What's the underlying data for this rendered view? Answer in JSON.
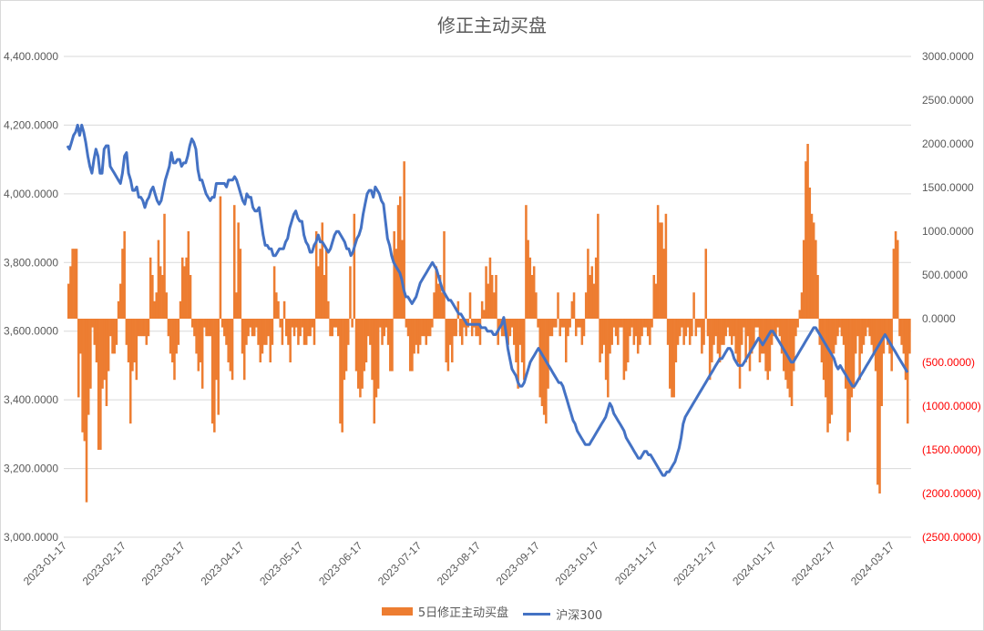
{
  "chart_data": {
    "type": "bar",
    "title": "修正主动买盘",
    "grid": true,
    "legend_position": "bottom",
    "x_tick_labels": [
      "2023-01-17",
      "2023-02-17",
      "2023-03-17",
      "2023-04-17",
      "2023-05-17",
      "2023-06-17",
      "2023-07-17",
      "2023-08-17",
      "2023-09-17",
      "2023-10-17",
      "2023-11-17",
      "2023-12-17",
      "2024-01-17",
      "2024-02-17",
      "2024-03-17"
    ],
    "left_axis": {
      "ticks": [
        "4,400.0000",
        "4,200.0000",
        "4,000.0000",
        "3,800.0000",
        "3,600.0000",
        "3,400.0000",
        "3,200.0000",
        "3,000.0000"
      ],
      "range": [
        3000,
        4400
      ]
    },
    "right_axis": {
      "ticks": [
        "3000.0000",
        "2500.0000",
        "2000.0000",
        "1500.0000",
        "1000.0000",
        "500.0000",
        "0.0000",
        "(500.0000)",
        "(1000.0000)",
        "(1500.0000)",
        "(2000.0000)",
        "(2500.0000)"
      ],
      "range": [
        -2500,
        3000
      ]
    },
    "series": [
      {
        "name": "5日修正主动买盘",
        "type": "bar",
        "axis": "right",
        "color": "#ED7D31",
        "values": [
          400,
          600,
          800,
          800,
          800,
          -900,
          -400,
          -1300,
          -1400,
          -2100,
          -1100,
          -800,
          -100,
          -300,
          -500,
          -1500,
          -1500,
          -800,
          -700,
          -1000,
          -600,
          -200,
          -400,
          -400,
          -300,
          200,
          400,
          800,
          1000,
          -300,
          -500,
          -1200,
          -600,
          -500,
          -700,
          -200,
          -200,
          -200,
          -200,
          -300,
          -200,
          700,
          500,
          200,
          300,
          900,
          600,
          500,
          1200,
          300,
          -200,
          -400,
          -500,
          -700,
          -400,
          -300,
          200,
          700,
          600,
          700,
          1000,
          500,
          -100,
          -200,
          -400,
          -600,
          -500,
          -800,
          -100,
          -200,
          -200,
          -200,
          -1200,
          -1300,
          -700,
          -1100,
          1400,
          -100,
          -200,
          -300,
          -500,
          -600,
          -700,
          1300,
          300,
          1100,
          800,
          -400,
          -700,
          -300,
          -200,
          -100,
          -200,
          -200,
          -100,
          -300,
          -500,
          -400,
          -300,
          -300,
          -200,
          -500,
          -300,
          600,
          300,
          200,
          -100,
          -300,
          200,
          -200,
          -300,
          -500,
          -100,
          -200,
          -100,
          -300,
          -200,
          -100,
          -300,
          -300,
          -200,
          -200,
          -100,
          -300,
          1000,
          600,
          800,
          1100,
          500,
          800,
          200,
          -200,
          -200,
          -100,
          -100,
          -200,
          -1200,
          -1300,
          -700,
          -600,
          -300,
          600,
          -100,
          1200,
          -600,
          -800,
          -900,
          -800,
          -600,
          -500,
          -200,
          -300,
          -700,
          -1200,
          -900,
          -800,
          -100,
          -300,
          -200,
          -100,
          -300,
          -600,
          -600,
          1000,
          800,
          1300,
          1400,
          900,
          1800,
          -100,
          -200,
          -600,
          -600,
          -400,
          -300,
          -400,
          -300,
          -200,
          -200,
          -300,
          -200,
          -200,
          -100,
          300,
          600,
          400,
          500,
          300,
          1000,
          -500,
          -600,
          -300,
          -500,
          -200,
          -200,
          200,
          -200,
          -300,
          -100,
          -200,
          -100,
          300,
          -200,
          -100,
          -200,
          -200,
          -300,
          200,
          100,
          600,
          400,
          700,
          500,
          300,
          500,
          -300,
          -100,
          -200,
          -200,
          -200,
          -300,
          -200,
          -100,
          -300,
          -500,
          -800,
          -300,
          -500,
          -700,
          1300,
          900,
          700,
          500,
          600,
          300,
          -100,
          -900,
          -1000,
          -1100,
          -1200,
          -800,
          -200,
          -200,
          -100,
          -100,
          300,
          -200,
          -100,
          -100,
          -500,
          -200,
          -100,
          200,
          300,
          -200,
          -100,
          -100,
          -300,
          -200,
          300,
          800,
          500,
          600,
          400,
          700,
          1200,
          -500,
          -400,
          -300,
          -700,
          -900,
          -400,
          -300,
          -100,
          -200,
          -300,
          -100,
          -100,
          -700,
          -600,
          -500,
          -200,
          -100,
          -300,
          -200,
          -400,
          -300,
          -200,
          -100,
          -100,
          -200,
          -300,
          -100,
          500,
          400,
          1300,
          1100,
          1100,
          800,
          1200,
          -300,
          -800,
          -900,
          -900,
          -500,
          -300,
          -200,
          -100,
          -300,
          -200,
          -100,
          -300,
          -200,
          300,
          -200,
          -100,
          -100,
          -400,
          -300,
          800,
          -200,
          -700,
          -500,
          -300,
          -200,
          -400,
          -500,
          -300,
          -300,
          -200,
          -100,
          -200,
          -300,
          -200,
          -400,
          -500,
          -800,
          -300,
          -100,
          -500,
          -200,
          -600,
          -400,
          -300,
          -100,
          -100,
          -500,
          -400,
          -400,
          -600,
          -700,
          -600,
          -300,
          -200,
          -200,
          -100,
          -200,
          -400,
          -600,
          -700,
          -800,
          -900,
          -1000,
          -600,
          -200,
          -100,
          100,
          300,
          900,
          1800,
          2000,
          1500,
          1200,
          1100,
          900,
          500,
          -300,
          -500,
          -700,
          -900,
          -1300,
          -1200,
          -1100,
          -400,
          -300,
          -200,
          -100,
          -200,
          -300,
          -800,
          -1400,
          -1300,
          -900,
          -800,
          -400,
          -200,
          -700,
          -400,
          -300,
          -200,
          -100,
          -200,
          -300,
          -400,
          -600,
          -1900,
          -2000,
          -1000,
          -400,
          -200,
          -300,
          -400,
          -600,
          800,
          1000,
          900,
          -200,
          -300,
          -400,
          -700,
          -1200,
          -400
        ],
        "values_note": "Approximate daily-like series; 385 points spanning 2023-01-17 to ~2024-04-08"
      },
      {
        "name": "沪深300",
        "type": "line",
        "axis": "left",
        "color": "#4472C4",
        "values": [
          4140,
          4130,
          4150,
          4170,
          4180,
          4200,
          4170,
          4200,
          4180,
          4150,
          4110,
          4080,
          4060,
          4100,
          4130,
          4110,
          4060,
          4060,
          4130,
          4140,
          4140,
          4080,
          4070,
          4060,
          4050,
          4040,
          4030,
          4060,
          4110,
          4120,
          4060,
          4040,
          4010,
          4010,
          4020,
          3990,
          3990,
          3980,
          3960,
          3980,
          3990,
          4010,
          4020,
          4000,
          3980,
          3970,
          3980,
          4010,
          4040,
          4060,
          4080,
          4120,
          4090,
          4090,
          4100,
          4100,
          4080,
          4090,
          4090,
          4110,
          4140,
          4160,
          4150,
          4130,
          4070,
          4040,
          4040,
          4020,
          4000,
          3990,
          3980,
          3990,
          3990,
          4030,
          4030,
          4030,
          4030,
          4030,
          4020,
          4040,
          4040,
          4040,
          4050,
          4040,
          4020,
          4000,
          3980,
          3970,
          4000,
          3990,
          3990,
          3960,
          3950,
          3950,
          3960,
          3920,
          3880,
          3850,
          3850,
          3840,
          3840,
          3820,
          3820,
          3830,
          3840,
          3840,
          3840,
          3860,
          3870,
          3900,
          3920,
          3940,
          3950,
          3930,
          3920,
          3920,
          3880,
          3860,
          3850,
          3830,
          3830,
          3850,
          3860,
          3880,
          3860,
          3860,
          3850,
          3840,
          3830,
          3840,
          3860,
          3880,
          3890,
          3890,
          3880,
          3870,
          3860,
          3840,
          3840,
          3820,
          3830,
          3850,
          3870,
          3880,
          3900,
          3940,
          3970,
          4000,
          4010,
          4010,
          3990,
          4020,
          4010,
          4000,
          3980,
          3970,
          3920,
          3870,
          3850,
          3820,
          3800,
          3790,
          3780,
          3770,
          3750,
          3720,
          3700,
          3700,
          3690,
          3680,
          3690,
          3700,
          3720,
          3740,
          3750,
          3760,
          3770,
          3780,
          3790,
          3800,
          3790,
          3780,
          3760,
          3740,
          3720,
          3710,
          3700,
          3690,
          3690,
          3680,
          3670,
          3660,
          3650,
          3650,
          3640,
          3630,
          3620,
          3620,
          3620,
          3620,
          3620,
          3620,
          3620,
          3610,
          3610,
          3610,
          3600,
          3600,
          3600,
          3590,
          3590,
          3600,
          3610,
          3620,
          3640,
          3600,
          3550,
          3520,
          3490,
          3480,
          3470,
          3450,
          3440,
          3440,
          3450,
          3470,
          3490,
          3510,
          3520,
          3530,
          3540,
          3550,
          3540,
          3530,
          3520,
          3510,
          3500,
          3490,
          3480,
          3470,
          3460,
          3450,
          3450,
          3440,
          3420,
          3400,
          3380,
          3360,
          3340,
          3330,
          3310,
          3300,
          3290,
          3280,
          3270,
          3270,
          3270,
          3280,
          3290,
          3300,
          3310,
          3320,
          3330,
          3340,
          3350,
          3370,
          3390,
          3380,
          3360,
          3350,
          3340,
          3330,
          3320,
          3310,
          3290,
          3280,
          3270,
          3260,
          3250,
          3240,
          3230,
          3230,
          3240,
          3250,
          3250,
          3240,
          3240,
          3230,
          3220,
          3210,
          3200,
          3190,
          3180,
          3180,
          3190,
          3190,
          3200,
          3210,
          3220,
          3240,
          3260,
          3290,
          3330,
          3350,
          3360,
          3370,
          3380,
          3390,
          3400,
          3410,
          3420,
          3430,
          3440,
          3450,
          3460,
          3470,
          3480,
          3490,
          3500,
          3510,
          3520,
          3520,
          3530,
          3540,
          3550,
          3550,
          3540,
          3520,
          3510,
          3500,
          3500,
          3500,
          3510,
          3520,
          3530,
          3540,
          3550,
          3560,
          3570,
          3580,
          3570,
          3560,
          3570,
          3580,
          3590,
          3600,
          3600,
          3590,
          3580,
          3570,
          3560,
          3550,
          3540,
          3530,
          3520,
          3510,
          3510,
          3520,
          3530,
          3540,
          3550,
          3560,
          3570,
          3580,
          3590,
          3600,
          3610,
          3610,
          3600,
          3590,
          3580,
          3570,
          3560,
          3550,
          3540,
          3530,
          3520,
          3500,
          3490,
          3500,
          3490,
          3480,
          3470,
          3460,
          3450,
          3440,
          3440,
          3450,
          3460,
          3470,
          3480,
          3490,
          3500,
          3510,
          3520,
          3530,
          3540,
          3550,
          3560,
          3570,
          3580,
          3590,
          3580,
          3570,
          3560,
          3550,
          3540,
          3530,
          3520,
          3510,
          3500,
          3490,
          3480
        ]
      }
    ],
    "legend_labels": [
      "5日修正主动买盘",
      "沪深300"
    ]
  }
}
